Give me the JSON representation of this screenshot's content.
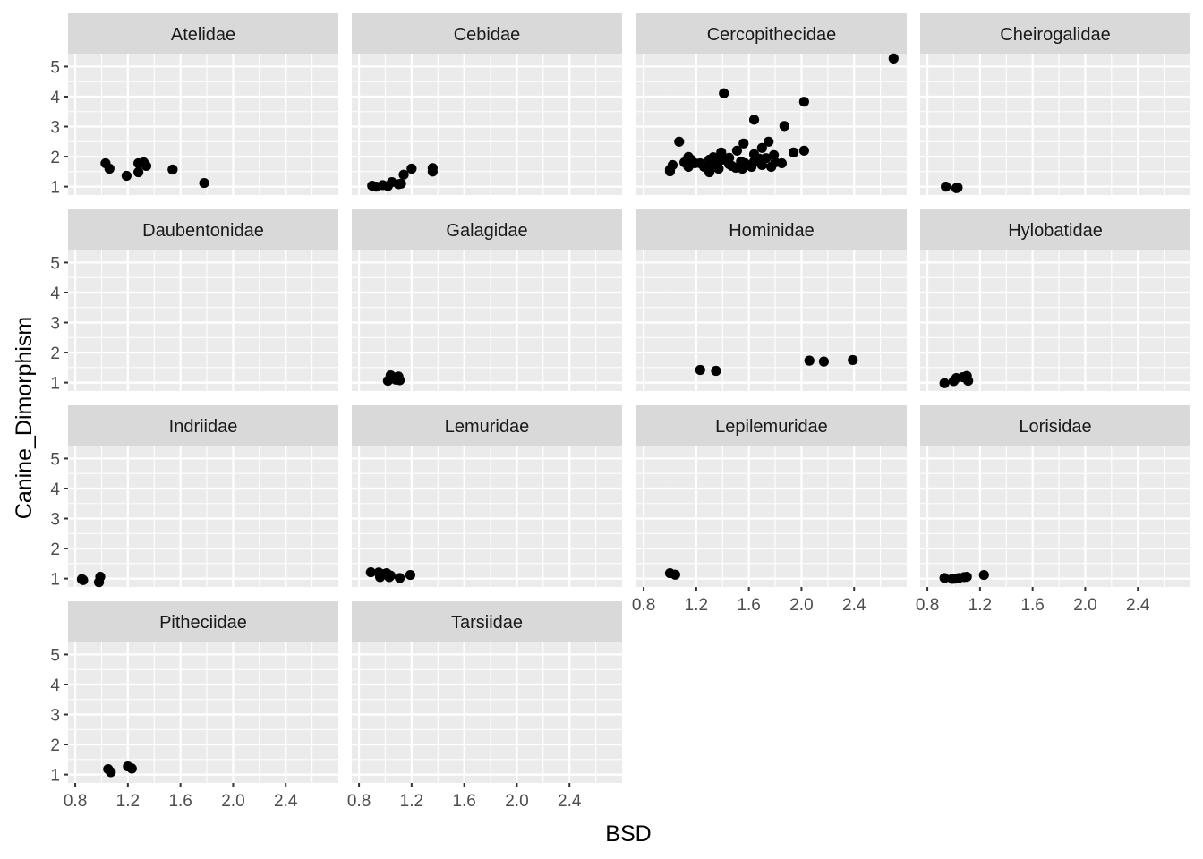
{
  "chart_data": {
    "type": "scatter",
    "title": "",
    "xlabel": "BSD",
    "ylabel": "Canine_Dimorphism",
    "xlim": [
      0.745,
      2.8
    ],
    "ylim": [
      0.72,
      5.43
    ],
    "xticks": [
      0.8,
      1.2,
      1.6,
      2.0,
      2.4
    ],
    "xtick_labels": [
      "0.8",
      "1.2",
      "1.6",
      "2.0",
      "2.4"
    ],
    "yticks": [
      1,
      2,
      3,
      4,
      5
    ],
    "ytick_labels": [
      "1",
      "2",
      "3",
      "4",
      "5"
    ],
    "grid": true,
    "facet_ncol": 4,
    "colors": {
      "panel_bg": "#EBEBEB",
      "strip_bg": "#D9D9D9",
      "grid": "#FFFFFF",
      "point": "#000000"
    },
    "facets": [
      {
        "name": "Atelidae",
        "points": [
          [
            1.03,
            1.78
          ],
          [
            1.06,
            1.6
          ],
          [
            1.19,
            1.36
          ],
          [
            1.28,
            1.78
          ],
          [
            1.28,
            1.48
          ],
          [
            1.32,
            1.81
          ],
          [
            1.34,
            1.69
          ],
          [
            1.54,
            1.57
          ],
          [
            1.78,
            1.12
          ]
        ]
      },
      {
        "name": "Cebidae",
        "points": [
          [
            0.9,
            1.03
          ],
          [
            0.93,
            1.0
          ],
          [
            0.98,
            1.05
          ],
          [
            1.02,
            1.02
          ],
          [
            1.05,
            1.15
          ],
          [
            1.1,
            1.08
          ],
          [
            1.12,
            1.1
          ],
          [
            1.14,
            1.4
          ],
          [
            1.2,
            1.6
          ],
          [
            1.36,
            1.62
          ],
          [
            1.36,
            1.5
          ]
        ]
      },
      {
        "name": "Cercopithecidae",
        "points": [
          [
            2.7,
            5.27
          ],
          [
            1.41,
            4.11
          ],
          [
            2.02,
            3.83
          ],
          [
            1.64,
            3.23
          ],
          [
            1.87,
            3.02
          ],
          [
            1.75,
            2.5
          ],
          [
            1.56,
            2.44
          ],
          [
            1.07,
            2.5
          ],
          [
            1.7,
            2.29
          ],
          [
            1.51,
            2.2
          ],
          [
            1.39,
            2.14
          ],
          [
            1.79,
            2.05
          ],
          [
            1.33,
            1.98
          ],
          [
            1.94,
            2.14
          ],
          [
            2.02,
            2.2
          ],
          [
            1.73,
            1.95
          ],
          [
            1.64,
            2.08
          ],
          [
            1.54,
            1.84
          ],
          [
            1.45,
            1.75
          ],
          [
            1.14,
            1.99
          ],
          [
            1.11,
            1.81
          ],
          [
            1.02,
            1.72
          ],
          [
            1.23,
            1.78
          ],
          [
            1.3,
            1.75
          ],
          [
            1.37,
            1.84
          ],
          [
            1.45,
            1.96
          ],
          [
            1.68,
            1.93
          ],
          [
            1.8,
            1.81
          ],
          [
            1.62,
            1.66
          ],
          [
            1.5,
            1.63
          ],
          [
            1.3,
            1.48
          ],
          [
            1.0,
            1.57
          ],
          [
            1.0,
            1.51
          ],
          [
            1.14,
            1.66
          ],
          [
            1.26,
            1.66
          ],
          [
            1.37,
            1.6
          ],
          [
            1.19,
            1.78
          ],
          [
            1.57,
            1.78
          ],
          [
            1.77,
            1.66
          ],
          [
            1.85,
            1.78
          ],
          [
            1.4,
            1.9
          ],
          [
            1.47,
            1.69
          ],
          [
            1.3,
            1.9
          ],
          [
            1.16,
            1.9
          ],
          [
            1.7,
            1.72
          ],
          [
            1.55,
            1.6
          ],
          [
            1.64,
            1.84
          ],
          [
            1.35,
            1.66
          ]
        ]
      },
      {
        "name": "Cheirogalidae",
        "points": [
          [
            0.94,
            1.0
          ],
          [
            1.02,
            0.95
          ],
          [
            1.03,
            0.97
          ]
        ]
      },
      {
        "name": "Daubentonidae",
        "points": []
      },
      {
        "name": "Galagidae",
        "points": [
          [
            1.02,
            1.06
          ],
          [
            1.04,
            1.24
          ],
          [
            1.06,
            1.18
          ],
          [
            1.08,
            1.1
          ],
          [
            1.1,
            1.2
          ],
          [
            1.11,
            1.08
          ]
        ]
      },
      {
        "name": "Hominidae",
        "points": [
          [
            1.23,
            1.42
          ],
          [
            1.35,
            1.39
          ],
          [
            2.06,
            1.73
          ],
          [
            2.17,
            1.7
          ],
          [
            2.39,
            1.75
          ]
        ]
      },
      {
        "name": "Hylobatidae",
        "points": [
          [
            0.93,
            0.98
          ],
          [
            1.0,
            1.05
          ],
          [
            1.02,
            1.15
          ],
          [
            1.07,
            1.18
          ],
          [
            1.1,
            1.22
          ],
          [
            1.11,
            1.06
          ]
        ]
      },
      {
        "name": "Indriidae",
        "points": [
          [
            0.85,
            0.98
          ],
          [
            0.86,
            0.95
          ],
          [
            0.98,
            0.88
          ],
          [
            0.99,
            1.06
          ]
        ]
      },
      {
        "name": "Lemuridae",
        "points": [
          [
            0.89,
            1.21
          ],
          [
            0.95,
            1.2
          ],
          [
            0.96,
            1.05
          ],
          [
            0.98,
            1.15
          ],
          [
            1.01,
            1.18
          ],
          [
            1.03,
            1.05
          ],
          [
            1.04,
            1.1
          ],
          [
            1.11,
            1.02
          ],
          [
            1.19,
            1.12
          ]
        ]
      },
      {
        "name": "Lepilemuridae",
        "points": [
          [
            1.0,
            1.18
          ],
          [
            1.04,
            1.13
          ]
        ]
      },
      {
        "name": "Lorisidae",
        "points": [
          [
            0.93,
            1.02
          ],
          [
            0.99,
            0.99
          ],
          [
            1.01,
            1.0
          ],
          [
            1.04,
            1.02
          ],
          [
            1.08,
            1.05
          ],
          [
            1.1,
            1.06
          ],
          [
            1.23,
            1.12
          ]
        ]
      },
      {
        "name": "Pitheciidae",
        "points": [
          [
            1.05,
            1.18
          ],
          [
            1.07,
            1.08
          ],
          [
            1.2,
            1.27
          ],
          [
            1.23,
            1.2
          ]
        ]
      },
      {
        "name": "Tarsiidae",
        "points": []
      }
    ]
  }
}
